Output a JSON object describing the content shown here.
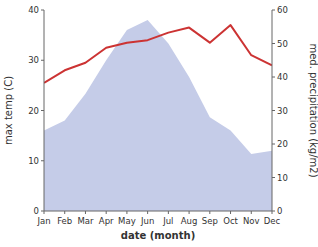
{
  "chart_data": {
    "type": "line",
    "xlabel": "date (month)",
    "ylabel": "max temp (C)",
    "y2label": "med. precipitation (kg/m2)",
    "categories": [
      "Jan",
      "Feb",
      "Mar",
      "Apr",
      "May",
      "Jun",
      "Jul",
      "Aug",
      "Sep",
      "Oct",
      "Nov",
      "Dec"
    ],
    "series": [
      {
        "type": "area",
        "axis": "y2",
        "color": "#c5cce8",
        "values": [
          24,
          27,
          35,
          45,
          54,
          57,
          50,
          40,
          28,
          24,
          17,
          18
        ]
      },
      {
        "type": "line",
        "color": "#cc3333",
        "values": [
          25.5,
          28.0,
          29.5,
          32.5,
          33.5,
          34.0,
          35.5,
          36.5,
          33.5,
          37.0,
          31.0,
          29.0
        ]
      }
    ],
    "ylim": [
      0,
      40
    ],
    "yticks": [
      0,
      10,
      20,
      30,
      40
    ],
    "y2lim": [
      0,
      60
    ],
    "y2ticks": [
      0,
      10,
      20,
      30,
      40,
      50,
      60
    ],
    "grid": false
  }
}
